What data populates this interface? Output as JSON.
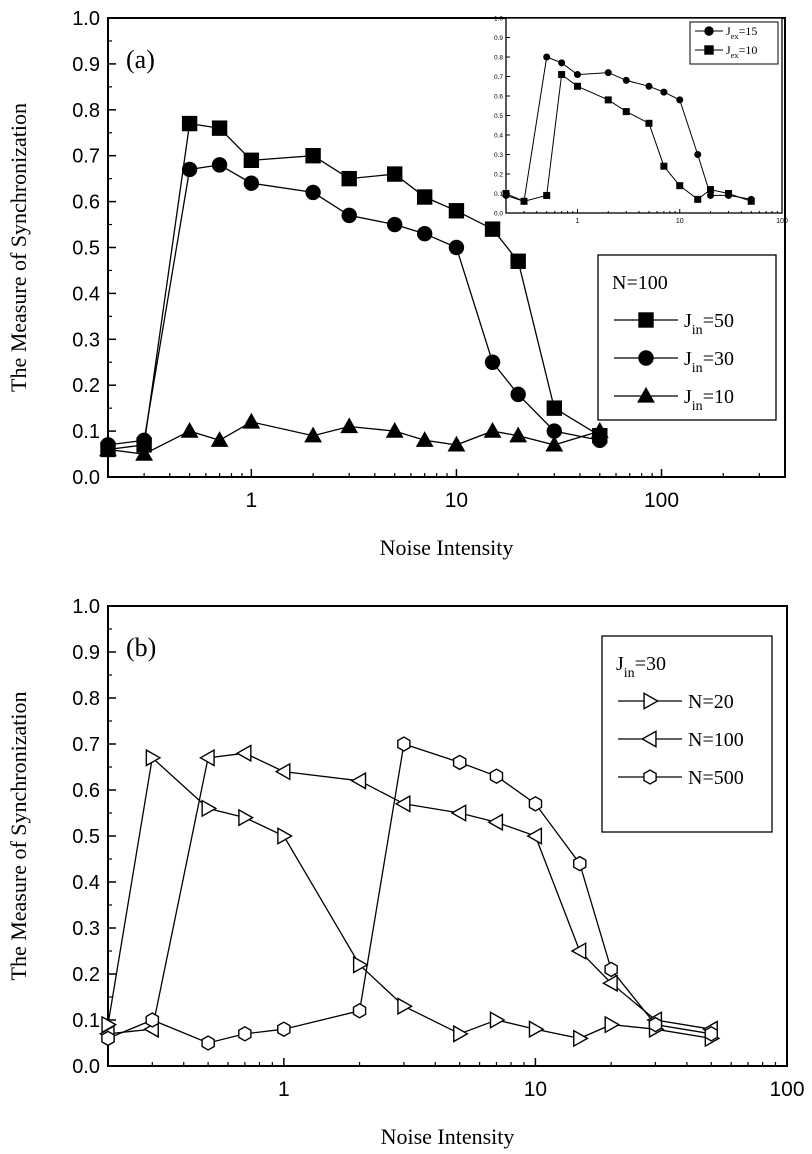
{
  "chart_data": [
    {
      "panel_label": "(a)",
      "type": "line",
      "xlabel": "Noise Intensity",
      "ylabel": "The Measure of Synchronization",
      "xscale": "log",
      "xlim": [
        0.2,
        400
      ],
      "ylim": [
        0.0,
        1.0
      ],
      "xticks": [
        {
          "v": 1,
          "label": "1"
        },
        {
          "v": 10,
          "label": "10"
        },
        {
          "v": 100,
          "label": "100"
        }
      ],
      "yticks": [
        "0.0",
        "0.1",
        "0.2",
        "0.3",
        "0.4",
        "0.5",
        "0.6",
        "0.7",
        "0.8",
        "0.9",
        "1.0"
      ],
      "grid": false,
      "legend": {
        "position": "right-middle",
        "title": {
          "main": "N=100",
          "sub": ""
        },
        "entries": [
          {
            "main": "J",
            "sub": "in",
            "tail": "=50",
            "series": 0
          },
          {
            "main": "J",
            "sub": "in",
            "tail": "=30",
            "series": 1
          },
          {
            "main": "J",
            "sub": "in",
            "tail": "=10",
            "series": 2
          }
        ]
      },
      "series": [
        {
          "marker": "square",
          "filled": true,
          "x": [
            0.2,
            0.3,
            0.5,
            0.7,
            1,
            2,
            3,
            5,
            7,
            10,
            15,
            20,
            30,
            50
          ],
          "y": [
            0.06,
            0.07,
            0.77,
            0.76,
            0.69,
            0.7,
            0.65,
            0.66,
            0.61,
            0.58,
            0.54,
            0.47,
            0.15,
            0.09
          ]
        },
        {
          "marker": "circle",
          "filled": true,
          "x": [
            0.2,
            0.3,
            0.5,
            0.7,
            1,
            2,
            3,
            5,
            7,
            10,
            15,
            20,
            30,
            50
          ],
          "y": [
            0.07,
            0.08,
            0.67,
            0.68,
            0.64,
            0.62,
            0.57,
            0.55,
            0.53,
            0.5,
            0.25,
            0.18,
            0.1,
            0.08
          ]
        },
        {
          "marker": "triangle-up",
          "filled": true,
          "x": [
            0.2,
            0.3,
            0.5,
            0.7,
            1,
            2,
            3,
            5,
            7,
            10,
            15,
            20,
            30,
            50
          ],
          "y": [
            0.06,
            0.05,
            0.1,
            0.08,
            0.12,
            0.09,
            0.11,
            0.1,
            0.08,
            0.07,
            0.1,
            0.09,
            0.07,
            0.1
          ]
        }
      ],
      "inset": {
        "type": "line",
        "xscale": "log",
        "xlim": [
          0.2,
          100
        ],
        "ylim": [
          0.0,
          1.0
        ],
        "xticks": [
          {
            "v": 1,
            "label": "1"
          },
          {
            "v": 10,
            "label": "10"
          },
          {
            "v": 100,
            "label": "100"
          }
        ],
        "yticks": [
          "0.0",
          "0.1",
          "0.2",
          "0.3",
          "0.4",
          "0.5",
          "0.6",
          "0.7",
          "0.8",
          "0.9",
          "1.0"
        ],
        "legend": {
          "position": "top-right",
          "entries": [
            {
              "main": "J",
              "sub": "ex",
              "tail": "=15",
              "series": 0
            },
            {
              "main": "J",
              "sub": "ex",
              "tail": "=10",
              "series": 1
            }
          ]
        },
        "series": [
          {
            "marker": "circle",
            "filled": true,
            "x": [
              0.2,
              0.3,
              0.5,
              0.7,
              1,
              2,
              3,
              5,
              7,
              10,
              15,
              20,
              30,
              50
            ],
            "y": [
              0.09,
              0.06,
              0.8,
              0.77,
              0.71,
              0.72,
              0.68,
              0.65,
              0.62,
              0.58,
              0.3,
              0.09,
              0.09,
              0.07
            ]
          },
          {
            "marker": "square",
            "filled": true,
            "x": [
              0.2,
              0.3,
              0.5,
              0.7,
              1,
              2,
              3,
              5,
              7,
              10,
              15,
              20,
              30,
              50
            ],
            "y": [
              0.1,
              0.06,
              0.09,
              0.71,
              0.65,
              0.58,
              0.52,
              0.46,
              0.24,
              0.14,
              0.07,
              0.12,
              0.1,
              0.06
            ]
          }
        ]
      }
    },
    {
      "panel_label": "(b)",
      "type": "line",
      "xlabel": "Noise Intensity",
      "ylabel": "The Measure of Synchronization",
      "xscale": "log",
      "xlim": [
        0.2,
        100
      ],
      "ylim": [
        0.0,
        1.0
      ],
      "xticks": [
        {
          "v": 1,
          "label": "1"
        },
        {
          "v": 10,
          "label": "10"
        },
        {
          "v": 100,
          "label": "100"
        }
      ],
      "yticks": [
        "0.0",
        "0.1",
        "0.2",
        "0.3",
        "0.4",
        "0.5",
        "0.6",
        "0.7",
        "0.8",
        "0.9",
        "1.0"
      ],
      "grid": false,
      "legend": {
        "position": "top-right",
        "title": {
          "main": "J",
          "sub": "in",
          "tail": "=30"
        },
        "entries": [
          {
            "main": "N=20",
            "sub": "",
            "tail": "",
            "series": 0
          },
          {
            "main": "N=100",
            "sub": "",
            "tail": "",
            "series": 1
          },
          {
            "main": "N=500",
            "sub": "",
            "tail": "",
            "series": 2
          }
        ]
      },
      "series": [
        {
          "marker": "triangle-right",
          "filled": false,
          "x": [
            0.2,
            0.3,
            0.5,
            0.7,
            1,
            2,
            3,
            5,
            7,
            10,
            15,
            20,
            30,
            50
          ],
          "y": [
            0.09,
            0.67,
            0.56,
            0.54,
            0.5,
            0.22,
            0.13,
            0.07,
            0.1,
            0.08,
            0.06,
            0.09,
            0.08,
            0.06
          ]
        },
        {
          "marker": "triangle-left",
          "filled": false,
          "x": [
            0.2,
            0.3,
            0.5,
            0.7,
            1,
            2,
            3,
            5,
            7,
            10,
            15,
            20,
            30,
            50
          ],
          "y": [
            0.07,
            0.08,
            0.67,
            0.68,
            0.64,
            0.62,
            0.57,
            0.55,
            0.53,
            0.5,
            0.25,
            0.18,
            0.1,
            0.08
          ]
        },
        {
          "marker": "hexagon",
          "filled": false,
          "x": [
            0.2,
            0.3,
            0.5,
            0.7,
            1,
            2,
            3,
            5,
            7,
            10,
            15,
            20,
            30,
            50
          ],
          "y": [
            0.06,
            0.1,
            0.05,
            0.07,
            0.08,
            0.12,
            0.7,
            0.66,
            0.63,
            0.57,
            0.44,
            0.21,
            0.09,
            0.07
          ]
        }
      ]
    }
  ]
}
